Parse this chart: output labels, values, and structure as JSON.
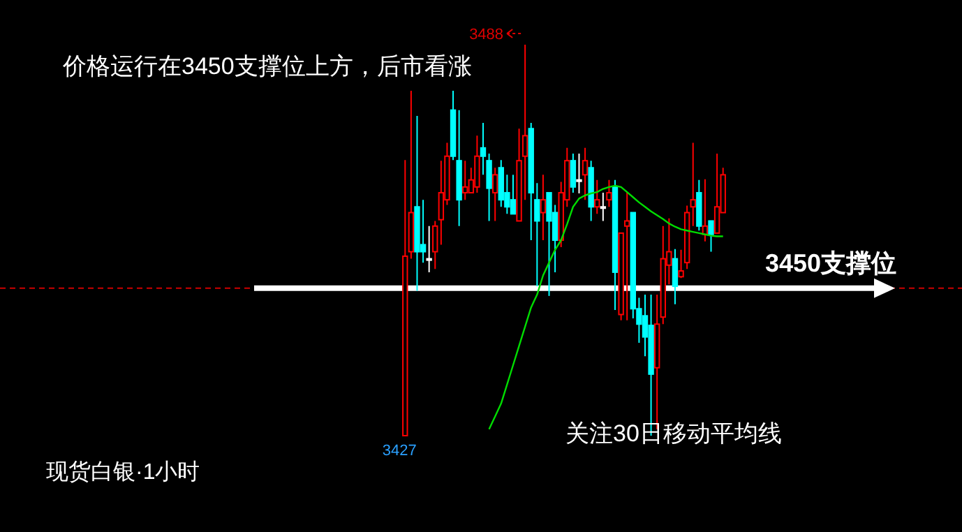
{
  "chart_data": {
    "type": "candlestick",
    "categories": [
      null,
      null,
      null,
      null,
      null,
      null,
      null,
      null,
      null,
      null,
      null,
      null,
      null,
      null,
      null,
      null,
      null,
      null,
      null,
      null,
      null,
      null,
      null,
      null,
      null,
      null,
      null,
      null,
      null,
      null,
      null,
      null,
      null,
      null,
      null,
      null,
      null,
      null,
      null,
      null,
      null,
      null,
      null,
      null,
      null,
      null,
      null,
      null,
      null,
      null,
      null,
      null,
      null,
      null
    ],
    "ohlc": [
      [
        3427,
        3470,
        3427,
        3455
      ],
      [
        3455.7,
        3480.8,
        3454.6,
        3461.8
      ],
      [
        3462.7,
        3476.9,
        3449.6,
        3455.7
      ],
      [
        3456.8,
        3463.8,
        3454,
        3455.7
      ],
      [
        3454.6,
        3459.7,
        3452.5,
        3454.6
      ],
      [
        3455.7,
        3460.5,
        3453,
        3459.7
      ],
      [
        3460.7,
        3469.9,
        3456.8,
        3464.9
      ],
      [
        3463.8,
        3472.7,
        3463,
        3470.6
      ],
      [
        3477.8,
        3480.8,
        3470,
        3470.6
      ],
      [
        3469.9,
        3477.8,
        3459.7,
        3463.8
      ],
      [
        3464.9,
        3469.9,
        3463.8,
        3465.8
      ],
      [
        3464.9,
        3468.8,
        3464.9,
        3466.9
      ],
      [
        3465.8,
        3473.8,
        3464.9,
        3470.6
      ],
      [
        3471.9,
        3475.8,
        3467.7,
        3470.6
      ],
      [
        3469.9,
        3471,
        3460.5,
        3465.6
      ],
      [
        3464.9,
        3468.8,
        3460.5,
        3467.7
      ],
      [
        3468.8,
        3470,
        3462.7,
        3463.8
      ],
      [
        3464.9,
        3467.7,
        3461.6,
        3462.7
      ],
      [
        3463.8,
        3467.7,
        3461.6,
        3461.6
      ],
      [
        3460.5,
        3474.9,
        3460.5,
        3469.9
      ],
      [
        3470.6,
        3488,
        3463.8,
        3473.8
      ],
      [
        3474.9,
        3475.8,
        3457.5,
        3464.9
      ],
      [
        3463.8,
        3466.4,
        3450.3,
        3460.5
      ],
      [
        3461.8,
        3467.7,
        3457.5,
        3463.8
      ],
      [
        3464.9,
        3464.9,
        3448.8,
        3460.5
      ],
      [
        3461.8,
        3463,
        3452.5,
        3457.5
      ],
      [
        3457.5,
        3466.6,
        3456.4,
        3464.9
      ],
      [
        3463.8,
        3471.9,
        3462.7,
        3469.9
      ],
      [
        3469.9,
        3471,
        3464.9,
        3465.8
      ],
      [
        3466.9,
        3471,
        3464.8,
        3466.9
      ],
      [
        3467.7,
        3471.9,
        3463.8,
        3469.9
      ],
      [
        3468.8,
        3469.9,
        3460.5,
        3462.7
      ],
      [
        3462.7,
        3466.9,
        3461.6,
        3463.8
      ],
      [
        3462.7,
        3464.9,
        3460.5,
        3462.7
      ],
      [
        3463.8,
        3466.9,
        3462.7,
        3464.9
      ],
      [
        3465.8,
        3466.9,
        3446.6,
        3452.5
      ],
      [
        3445.9,
        3458.6,
        3445,
        3458.6
      ],
      [
        3459.7,
        3465,
        3445,
        3460.5
      ],
      [
        3461.8,
        3461.8,
        3445.3,
        3446.8
      ],
      [
        3446.8,
        3448.5,
        3441.5,
        3444.4
      ],
      [
        3445.7,
        3449,
        3439.4,
        3442.4
      ],
      [
        3444.2,
        3449,
        3427,
        3436.6
      ],
      [
        3437.6,
        3449,
        3428,
        3444.4
      ],
      [
        3445.5,
        3459.7,
        3444.4,
        3454.6
      ],
      [
        3453.6,
        3460.9,
        3450.6,
        3455.7
      ],
      [
        3454.6,
        3456.1,
        3447.5,
        3450.3
      ],
      [
        3451.8,
        3456,
        3451.6,
        3452.7
      ],
      [
        3454,
        3462.9,
        3453,
        3461.8
      ],
      [
        3462.7,
        3472.7,
        3459.7,
        3463.8
      ],
      [
        3464.9,
        3466.9,
        3459,
        3459.7
      ],
      [
        3458.4,
        3467,
        3457.3,
        3459.7
      ],
      [
        3460.5,
        3460.5,
        3455.7,
        3458.4
      ],
      [
        3458.6,
        3471,
        3458.6,
        3462.7
      ],
      [
        3461.8,
        3468.8,
        3461.8,
        3467.7
      ]
    ],
    "colors": [
      "#ff0000",
      "#ff0000",
      "#00ffff",
      "#00ffff",
      "#ffffff",
      "#ff0000",
      "#ff0000",
      "#ff0000",
      "#00ffff",
      "#00ffff",
      "#ff0000",
      "#ff0000",
      "#ff0000",
      "#00ffff",
      "#00ffff",
      "#ff0000",
      "#00ffff",
      "#00ffff",
      "#00ffff",
      "#ff0000",
      "#ff0000",
      "#00ffff",
      "#00ffff",
      "#ff0000",
      "#00ffff",
      "#00ffff",
      "#ff0000",
      "#ff0000",
      "#00ffff",
      "#ffffff",
      "#ff0000",
      "#00ffff",
      "#ff0000",
      "#ffffff",
      "#ff0000",
      "#00ffff",
      "#ff0000",
      "#ff0000",
      "#00ffff",
      "#00ffff",
      "#00ffff",
      "#00ffff",
      "#ff0000",
      "#ff0000",
      "#ff0000",
      "#00ffff",
      "#ff0000",
      "#ff0000",
      "#ff0000",
      "#00ffff",
      "#ff0000",
      "#00ffff",
      "#ff0000",
      "#ff0000"
    ],
    "series": [
      {
        "type": "line",
        "color": "#00dd00",
        "values": [
          null,
          null,
          null,
          null,
          null,
          null,
          null,
          null,
          null,
          null,
          null,
          null,
          null,
          null,
          3428,
          3430,
          3432,
          3435,
          3438,
          3441,
          3444,
          3447,
          3449,
          3452,
          3454,
          3456,
          3457.5,
          3460,
          3462.7,
          3464,
          3464.5,
          3464.8,
          3465,
          3465.5,
          3465.8,
          3466,
          3465.8,
          3465,
          3464.2,
          3463.4,
          3462.7,
          3462,
          3461.4,
          3460.8,
          3460.1,
          3459.6,
          3459.2,
          3459,
          3458.8,
          3458.6,
          3458.4,
          3458.2,
          3458.1,
          3458.1
        ]
      }
    ],
    "ref_lines": [
      {
        "axis": "y",
        "value": 3450,
        "color": "#cc0000",
        "line_style": "dashed"
      },
      {
        "axis": "y",
        "value": 3450,
        "label": "3450支撑位",
        "color": "#ffffff"
      }
    ],
    "annotations": [
      "价格运行在3450支撑位上方，后市看涨",
      "3488",
      "3427",
      "关注30日移动平均线",
      "现货白银·1小时"
    ]
  }
}
